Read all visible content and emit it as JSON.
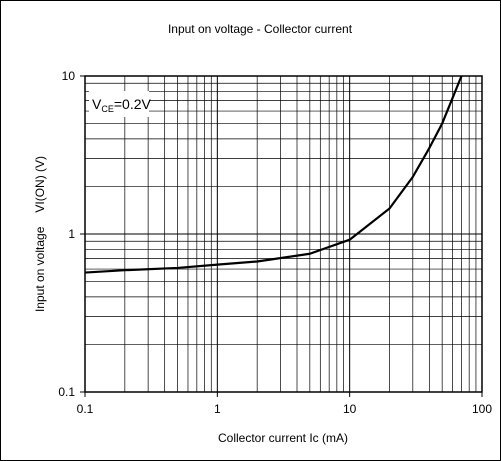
{
  "chart_data": {
    "type": "line",
    "title": "Input on voltage  -  Collector current",
    "xlabel": "Collector current Ic (mA)",
    "ylabel_main": "Input on voltage",
    "ylabel_symbol": "VI(ON) (V)",
    "annotation": {
      "v": "V",
      "sub": "CE",
      "rest": "=0.2V"
    },
    "xscale": "log",
    "yscale": "log",
    "xlim": [
      0.1,
      100
    ],
    "ylim": [
      0.1,
      10
    ],
    "grid": true,
    "xticks": [
      {
        "value": 0.1,
        "label": "0.1"
      },
      {
        "value": 1,
        "label": "1"
      },
      {
        "value": 10,
        "label": "10"
      },
      {
        "value": 100,
        "label": "100"
      }
    ],
    "yticks": [
      {
        "value": 0.1,
        "label": "0.1"
      },
      {
        "value": 1,
        "label": "1"
      },
      {
        "value": 10,
        "label": "10"
      }
    ],
    "series": [
      {
        "values": [
          [
            0.1,
            0.57
          ],
          [
            0.2,
            0.59
          ],
          [
            0.5,
            0.61
          ],
          [
            1,
            0.64
          ],
          [
            2,
            0.67
          ],
          [
            5,
            0.75
          ],
          [
            10,
            0.92
          ],
          [
            20,
            1.45
          ],
          [
            30,
            2.3
          ],
          [
            40,
            3.5
          ],
          [
            50,
            5.0
          ],
          [
            70,
            10.0
          ]
        ]
      }
    ],
    "line_color": "#000000"
  }
}
